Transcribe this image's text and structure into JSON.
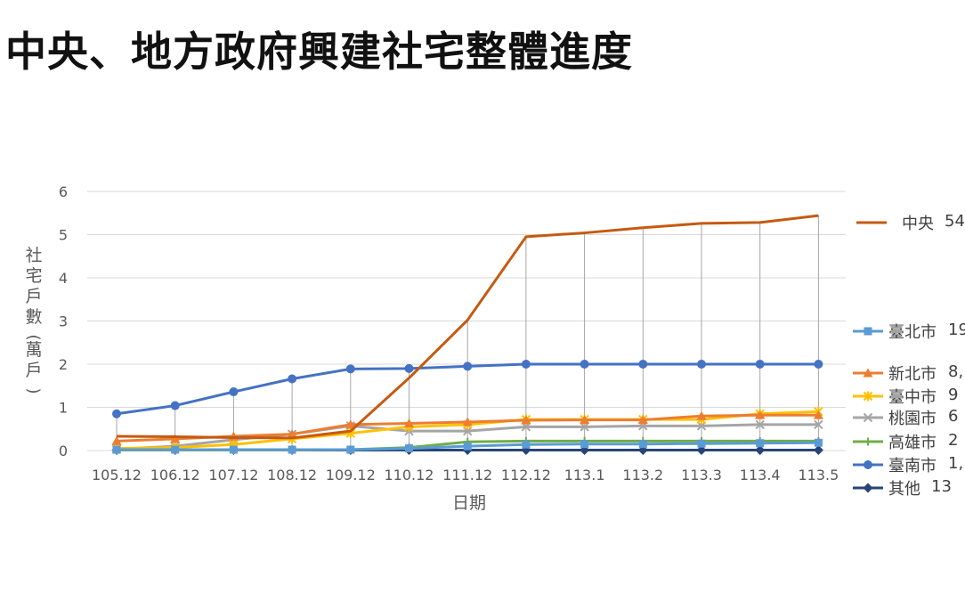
{
  "title": "中央、地方政府興建社宅整體進度",
  "chart_data": {
    "type": "line",
    "xlabel": "日期",
    "ylabel": "社宅戶數(萬戶)",
    "ylim": [
      0,
      6
    ],
    "yticks": [
      0,
      1,
      2,
      3,
      4,
      5,
      6
    ],
    "grid": "horizontal major gridlines; vertical drop lines at each category",
    "legend_position": "right",
    "categories": [
      "105.12",
      "106.12",
      "107.12",
      "108.12",
      "109.12",
      "110.12",
      "111.12",
      "112.12",
      "113.1",
      "113.2",
      "113.3",
      "113.4",
      "113.5"
    ],
    "series": [
      {
        "name": "中央",
        "label_suffix": "54",
        "color": "#c55a11",
        "marker": "none",
        "values": [
          0.33,
          0.32,
          0.3,
          0.29,
          0.45,
          1.68,
          3.02,
          4.95,
          5.04,
          5.16,
          5.26,
          5.28,
          5.44
        ]
      },
      {
        "name": "臺北市",
        "label_suffix": "19",
        "color": "#5b9bd5",
        "marker": "square",
        "values": [
          0.02,
          0.02,
          0.02,
          0.02,
          0.02,
          0.05,
          0.1,
          0.14,
          0.15,
          0.15,
          0.16,
          0.17,
          0.18
        ]
      },
      {
        "name": "新北市",
        "label_suffix": "8,",
        "color": "#ed7d31",
        "marker": "triangle",
        "values": [
          0.22,
          0.27,
          0.33,
          0.38,
          0.6,
          0.63,
          0.66,
          0.7,
          0.71,
          0.71,
          0.8,
          0.82,
          0.82
        ]
      },
      {
        "name": "臺中市",
        "label_suffix": "9",
        "color": "#ffc000",
        "marker": "star",
        "values": [
          0.05,
          0.07,
          0.14,
          0.27,
          0.4,
          0.55,
          0.6,
          0.72,
          0.72,
          0.72,
          0.72,
          0.85,
          0.9
        ]
      },
      {
        "name": "桃園市",
        "label_suffix": "6",
        "color": "#a5a5a5",
        "marker": "x",
        "values": [
          0.03,
          0.1,
          0.25,
          0.38,
          0.57,
          0.45,
          0.45,
          0.55,
          0.55,
          0.57,
          0.57,
          0.6,
          0.6
        ]
      },
      {
        "name": "高雄市",
        "label_suffix": "2",
        "color": "#70ad47",
        "marker": "plus",
        "values": [
          0.01,
          0.01,
          0.01,
          0.01,
          0.02,
          0.07,
          0.2,
          0.22,
          0.22,
          0.22,
          0.22,
          0.22,
          0.22
        ]
      },
      {
        "name": "臺南市",
        "label_suffix": "1,",
        "color": "#4472c4",
        "marker": "circle",
        "values": [
          0.85,
          1.04,
          1.36,
          1.66,
          1.89,
          1.9,
          1.95,
          2.0,
          2.0,
          2.0,
          2.0,
          2.0,
          2.0
        ]
      },
      {
        "name": "其他",
        "label_suffix": "13",
        "color": "#264478",
        "marker": "diamond",
        "values": [
          0.01,
          0.01,
          0.01,
          0.01,
          0.01,
          0.01,
          0.01,
          0.01,
          0.01,
          0.01,
          0.01,
          0.01,
          0.01
        ]
      }
    ]
  }
}
